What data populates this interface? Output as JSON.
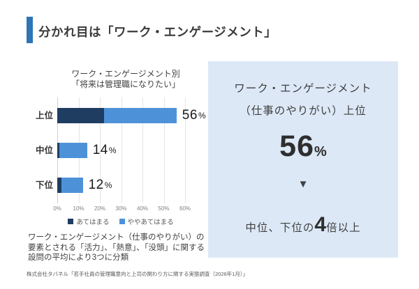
{
  "page": {
    "title": "分かれ目は「ワーク・エンゲージメント」",
    "footer": "株式会社タバネル「若手社員の管理職意向と上司の関わり方に関する実態調査（2026年1月）」"
  },
  "chart_data": {
    "type": "bar",
    "orientation": "horizontal",
    "stacked": true,
    "title_lines": [
      "ワーク・エンゲージメント別",
      "「将来は管理職になりたい」"
    ],
    "categories": [
      "上位",
      "中位",
      "下位"
    ],
    "series": [
      {
        "name": "あてはまる",
        "color": "#1F3D61",
        "values": [
          22,
          1,
          2
        ]
      },
      {
        "name": "ややあてはまる",
        "color": "#4D92D8",
        "values": [
          34,
          13,
          10
        ]
      }
    ],
    "totals": [
      {
        "value": "56",
        "unit": "%"
      },
      {
        "value": "14",
        "unit": "%"
      },
      {
        "value": "12",
        "unit": "%"
      }
    ],
    "x_ticks": [
      "0%",
      "10%",
      "20%",
      "30%",
      "40%",
      "50%",
      "60%"
    ],
    "xlim": [
      0,
      60
    ],
    "grid": true,
    "legend_position": "bottom",
    "note": "ワーク・エンゲージメント（仕事のやりがい）の要素とされる「活力」、「熱意」、「没頭」に関する設問の平均により3つに分類"
  },
  "panel": {
    "bg_color": "#DCE8F6",
    "line1": "ワーク・エンゲージメント",
    "line2": "（仕事のやりがい）上位",
    "big_value": "56",
    "big_unit": "%",
    "arrow": "▼",
    "bottom_prefix": "中位、下位の",
    "bottom_big": "4",
    "bottom_suffix": "倍以上"
  },
  "colors": {
    "accent_bar": "#2E75B6",
    "series_dark": "#1F3D61",
    "series_light": "#4D92D8",
    "panel_bg": "#DCE8F6",
    "grid": "#e4e4e4"
  }
}
